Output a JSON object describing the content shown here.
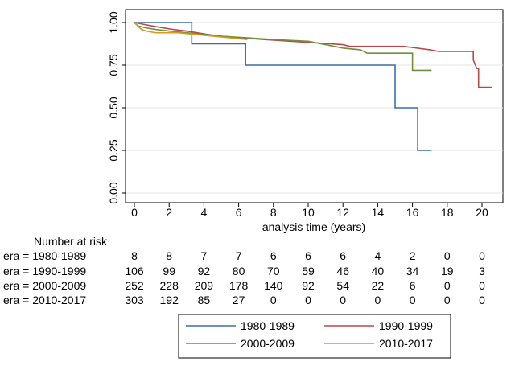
{
  "chart_data": {
    "type": "line",
    "subtype": "kaplan-meier-step",
    "title": "",
    "xlabel": "analysis time (years)",
    "ylabel": "",
    "xlim": [
      0,
      21
    ],
    "ylim": [
      0,
      1
    ],
    "x_ticks": [
      0,
      2,
      4,
      6,
      8,
      10,
      12,
      14,
      16,
      18,
      20
    ],
    "x_tick_labels": [
      "0",
      "2",
      "4",
      "6",
      "8",
      "10",
      "12",
      "14",
      "16",
      "18",
      "20"
    ],
    "y_ticks": [
      0,
      0.25,
      0.5,
      0.75,
      1
    ],
    "y_tick_labels": [
      "0.00",
      "0.25",
      "0.50",
      "0.75",
      "1.00"
    ],
    "grid": "horizontal",
    "legend_placement": "bottom",
    "series": [
      {
        "name": "1980-1989",
        "color": "#3a6fa6",
        "points": [
          [
            0,
            1.0
          ],
          [
            3.3,
            1.0
          ],
          [
            3.3,
            0.875
          ],
          [
            6.4,
            0.875
          ],
          [
            6.4,
            0.75
          ],
          [
            15.0,
            0.75
          ],
          [
            15.0,
            0.5
          ],
          [
            16.3,
            0.5
          ],
          [
            16.3,
            0.25
          ],
          [
            17.1,
            0.25
          ]
        ]
      },
      {
        "name": "1990-1999",
        "color": "#b9484c",
        "points": [
          [
            0,
            1.0
          ],
          [
            0.5,
            0.99
          ],
          [
            1.0,
            0.98
          ],
          [
            1.6,
            0.97
          ],
          [
            2.2,
            0.96
          ],
          [
            3.0,
            0.95
          ],
          [
            3.6,
            0.94
          ],
          [
            4.2,
            0.93
          ],
          [
            5.0,
            0.92
          ],
          [
            6.2,
            0.91
          ],
          [
            7.5,
            0.9
          ],
          [
            9.0,
            0.89
          ],
          [
            10.5,
            0.88
          ],
          [
            12.0,
            0.87
          ],
          [
            12.4,
            0.86
          ],
          [
            13.0,
            0.86
          ],
          [
            15.5,
            0.86
          ],
          [
            17.0,
            0.84
          ],
          [
            17.5,
            0.83
          ],
          [
            19.5,
            0.83
          ],
          [
            19.5,
            0.78
          ],
          [
            19.7,
            0.73
          ],
          [
            19.8,
            0.73
          ],
          [
            19.8,
            0.62
          ],
          [
            20.6,
            0.62
          ]
        ]
      },
      {
        "name": "2000-2009",
        "color": "#6f8f3a",
        "points": [
          [
            0,
            1.0
          ],
          [
            0.2,
            0.98
          ],
          [
            0.6,
            0.97
          ],
          [
            1.2,
            0.96
          ],
          [
            2.0,
            0.95
          ],
          [
            3.0,
            0.94
          ],
          [
            4.0,
            0.93
          ],
          [
            5.0,
            0.92
          ],
          [
            6.5,
            0.91
          ],
          [
            8.0,
            0.9
          ],
          [
            10.0,
            0.89
          ],
          [
            11.0,
            0.87
          ],
          [
            12.0,
            0.85
          ],
          [
            13.0,
            0.84
          ],
          [
            13.4,
            0.82
          ],
          [
            16.0,
            0.82
          ],
          [
            16.0,
            0.72
          ],
          [
            17.1,
            0.72
          ]
        ]
      },
      {
        "name": "2010-2017",
        "color": "#d99a1e",
        "points": [
          [
            0,
            1.0
          ],
          [
            0.2,
            0.98
          ],
          [
            0.4,
            0.96
          ],
          [
            0.7,
            0.95
          ],
          [
            1.2,
            0.94
          ],
          [
            2.5,
            0.94
          ],
          [
            3.5,
            0.93
          ],
          [
            4.5,
            0.92
          ],
          [
            5.5,
            0.91
          ],
          [
            6.5,
            0.9
          ]
        ]
      }
    ],
    "number_at_risk": {
      "heading": "Number at risk",
      "time_points": [
        0,
        2,
        4,
        6,
        8,
        10,
        12,
        14,
        16,
        18,
        20
      ],
      "rows": [
        {
          "label": "era = 1980-1989",
          "values": [
            8,
            8,
            7,
            7,
            6,
            6,
            6,
            4,
            2,
            0,
            0
          ]
        },
        {
          "label": "era = 1990-1999",
          "values": [
            106,
            99,
            92,
            80,
            70,
            59,
            46,
            40,
            34,
            19,
            3
          ]
        },
        {
          "label": "era = 2000-2009",
          "values": [
            252,
            228,
            209,
            178,
            140,
            92,
            54,
            22,
            6,
            0,
            0
          ]
        },
        {
          "label": "era = 2010-2017",
          "values": [
            303,
            192,
            85,
            27,
            0,
            0,
            0,
            0,
            0,
            0,
            0
          ]
        }
      ]
    }
  }
}
